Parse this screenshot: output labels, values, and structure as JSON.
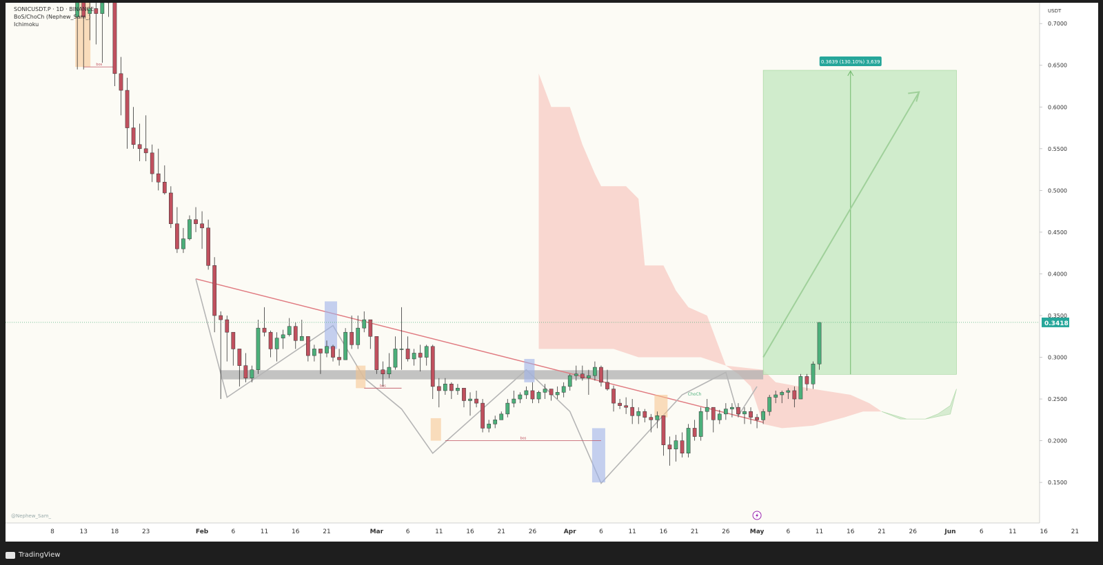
{
  "header": {
    "symbol_line": "SONICUSDT.P · 1D · BINANCE",
    "indicator_1": "BoS/ChoCh (Nephew_Sam_)",
    "indicator_2": "Ichimoku"
  },
  "watermark": "@Nephew_Sam_",
  "footer": {
    "brand": "TradingView"
  },
  "price_axis": {
    "currency": "USDT",
    "last_price_label": "0.3418",
    "last_price_color": "#26a69a"
  },
  "target_box": {
    "label": "0.3639 (130.10%) 3,639",
    "color": "#26a69a"
  },
  "annotations": {
    "bos": "bos",
    "choch": "ChoCh"
  },
  "colors": {
    "bull": "#4caf7a",
    "bear": "#c0505e",
    "cloud_bear": "#f5b9b0",
    "cloud_bull": "#cde8c8",
    "trendline": "#e07a80",
    "support_zone": "#b0b0b0",
    "target_fill": "#c8e9c4",
    "pattern_line": "#b5b5b5"
  },
  "chart_data": {
    "type": "candlestick",
    "title": "SONICUSDT.P 1D BINANCE",
    "ylabel": "USDT",
    "ylim": [
      0.1,
      0.73
    ],
    "y_ticks": [
      "0.7000",
      "0.6500",
      "0.6000",
      "0.5500",
      "0.5000",
      "0.4500",
      "0.4000",
      "0.3500",
      "0.3000",
      "0.2500",
      "0.2000",
      "0.1500"
    ],
    "x_tick_labels": [
      "8",
      "13",
      "18",
      "23",
      "Feb",
      "6",
      "11",
      "16",
      "21",
      "Mar",
      "6",
      "11",
      "16",
      "21",
      "26",
      "Apr",
      "6",
      "11",
      "16",
      "21",
      "26",
      "May",
      "6",
      "11",
      "16",
      "21",
      "26",
      "Jun",
      "6",
      "11",
      "16",
      "21"
    ],
    "x_tick_dates": [
      "2025-01-08",
      "2025-01-13",
      "2025-01-18",
      "2025-01-23",
      "2025-02-01",
      "2025-02-06",
      "2025-02-11",
      "2025-02-16",
      "2025-02-21",
      "2025-03-01",
      "2025-03-06",
      "2025-03-11",
      "2025-03-16",
      "2025-03-21",
      "2025-03-26",
      "2025-04-01",
      "2025-04-06",
      "2025-04-11",
      "2025-04-16",
      "2025-04-21",
      "2025-04-26",
      "2025-05-01",
      "2025-05-06",
      "2025-05-11",
      "2025-05-16",
      "2025-05-21",
      "2025-05-26",
      "2025-06-01",
      "2025-06-06",
      "2025-06-11",
      "2025-06-16",
      "2025-06-21"
    ],
    "last_price": 0.3418,
    "target_price": 0.644,
    "entry_price": 0.2795,
    "candles_start_date": "2025-01-12",
    "candles": [
      [
        0.708,
        0.728,
        0.645,
        0.728
      ],
      [
        0.728,
        0.735,
        0.645,
        0.708
      ],
      [
        0.712,
        0.73,
        0.68,
        0.718
      ],
      [
        0.718,
        0.735,
        0.675,
        0.712
      ],
      [
        0.712,
        0.74,
        0.653,
        0.725
      ],
      [
        0.725,
        0.74,
        0.708,
        0.735
      ],
      [
        0.73,
        0.74,
        0.625,
        0.64
      ],
      [
        0.64,
        0.66,
        0.59,
        0.62
      ],
      [
        0.62,
        0.635,
        0.55,
        0.575
      ],
      [
        0.575,
        0.6,
        0.55,
        0.555
      ],
      [
        0.555,
        0.58,
        0.535,
        0.55
      ],
      [
        0.55,
        0.59,
        0.535,
        0.545
      ],
      [
        0.545,
        0.555,
        0.51,
        0.52
      ],
      [
        0.52,
        0.55,
        0.5,
        0.51
      ],
      [
        0.51,
        0.53,
        0.495,
        0.497
      ],
      [
        0.497,
        0.505,
        0.455,
        0.46
      ],
      [
        0.46,
        0.48,
        0.425,
        0.43
      ],
      [
        0.43,
        0.455,
        0.425,
        0.442
      ],
      [
        0.442,
        0.47,
        0.44,
        0.465
      ],
      [
        0.465,
        0.48,
        0.45,
        0.46
      ],
      [
        0.46,
        0.475,
        0.43,
        0.455
      ],
      [
        0.455,
        0.465,
        0.405,
        0.41
      ],
      [
        0.41,
        0.42,
        0.33,
        0.35
      ],
      [
        0.35,
        0.355,
        0.25,
        0.345
      ],
      [
        0.345,
        0.35,
        0.295,
        0.33
      ],
      [
        0.33,
        0.33,
        0.29,
        0.31
      ],
      [
        0.31,
        0.31,
        0.265,
        0.29
      ],
      [
        0.29,
        0.305,
        0.27,
        0.275
      ],
      [
        0.275,
        0.29,
        0.27,
        0.285
      ],
      [
        0.285,
        0.345,
        0.28,
        0.335
      ],
      [
        0.335,
        0.36,
        0.325,
        0.33
      ],
      [
        0.33,
        0.332,
        0.3,
        0.31
      ],
      [
        0.31,
        0.33,
        0.295,
        0.323
      ],
      [
        0.323,
        0.333,
        0.31,
        0.327
      ],
      [
        0.327,
        0.347,
        0.325,
        0.337
      ],
      [
        0.337,
        0.342,
        0.31,
        0.32
      ],
      [
        0.32,
        0.345,
        0.32,
        0.325
      ],
      [
        0.325,
        0.325,
        0.295,
        0.302
      ],
      [
        0.302,
        0.315,
        0.295,
        0.31
      ],
      [
        0.31,
        0.31,
        0.28,
        0.305
      ],
      [
        0.305,
        0.32,
        0.3,
        0.313
      ],
      [
        0.313,
        0.315,
        0.295,
        0.3
      ],
      [
        0.3,
        0.31,
        0.29,
        0.297
      ],
      [
        0.297,
        0.335,
        0.297,
        0.33
      ],
      [
        0.33,
        0.35,
        0.31,
        0.315
      ],
      [
        0.315,
        0.35,
        0.31,
        0.335
      ],
      [
        0.335,
        0.355,
        0.33,
        0.345
      ],
      [
        0.345,
        0.345,
        0.31,
        0.325
      ],
      [
        0.325,
        0.325,
        0.28,
        0.285
      ],
      [
        0.285,
        0.295,
        0.265,
        0.28
      ],
      [
        0.28,
        0.305,
        0.275,
        0.288
      ],
      [
        0.288,
        0.325,
        0.285,
        0.31
      ],
      [
        0.31,
        0.36,
        0.285,
        0.31
      ],
      [
        0.31,
        0.325,
        0.295,
        0.298
      ],
      [
        0.298,
        0.31,
        0.29,
        0.305
      ],
      [
        0.305,
        0.315,
        0.283,
        0.3
      ],
      [
        0.3,
        0.315,
        0.29,
        0.313
      ],
      [
        0.313,
        0.315,
        0.25,
        0.265
      ],
      [
        0.265,
        0.275,
        0.24,
        0.26
      ],
      [
        0.26,
        0.275,
        0.255,
        0.268
      ],
      [
        0.268,
        0.27,
        0.25,
        0.26
      ],
      [
        0.26,
        0.268,
        0.255,
        0.263
      ],
      [
        0.263,
        0.263,
        0.24,
        0.248
      ],
      [
        0.248,
        0.258,
        0.23,
        0.25
      ],
      [
        0.25,
        0.26,
        0.24,
        0.245
      ],
      [
        0.245,
        0.25,
        0.21,
        0.215
      ],
      [
        0.215,
        0.225,
        0.21,
        0.22
      ],
      [
        0.22,
        0.23,
        0.215,
        0.225
      ],
      [
        0.225,
        0.235,
        0.225,
        0.232
      ],
      [
        0.232,
        0.25,
        0.228,
        0.245
      ],
      [
        0.245,
        0.26,
        0.24,
        0.25
      ],
      [
        0.25,
        0.258,
        0.245,
        0.255
      ],
      [
        0.255,
        0.265,
        0.25,
        0.26
      ],
      [
        0.26,
        0.27,
        0.245,
        0.25
      ],
      [
        0.25,
        0.26,
        0.245,
        0.258
      ],
      [
        0.258,
        0.268,
        0.25,
        0.262
      ],
      [
        0.262,
        0.262,
        0.248,
        0.255
      ],
      [
        0.255,
        0.265,
        0.25,
        0.258
      ],
      [
        0.258,
        0.27,
        0.252,
        0.265
      ],
      [
        0.265,
        0.28,
        0.26,
        0.278
      ],
      [
        0.278,
        0.29,
        0.272,
        0.28
      ],
      [
        0.28,
        0.29,
        0.272,
        0.275
      ],
      [
        0.275,
        0.285,
        0.255,
        0.278
      ],
      [
        0.278,
        0.295,
        0.272,
        0.288
      ],
      [
        0.288,
        0.29,
        0.265,
        0.27
      ],
      [
        0.27,
        0.285,
        0.26,
        0.262
      ],
      [
        0.262,
        0.266,
        0.235,
        0.245
      ],
      [
        0.245,
        0.25,
        0.238,
        0.242
      ],
      [
        0.242,
        0.252,
        0.232,
        0.24
      ],
      [
        0.24,
        0.25,
        0.22,
        0.23
      ],
      [
        0.23,
        0.24,
        0.22,
        0.235
      ],
      [
        0.235,
        0.238,
        0.222,
        0.228
      ],
      [
        0.228,
        0.232,
        0.21,
        0.225
      ],
      [
        0.225,
        0.235,
        0.215,
        0.23
      ],
      [
        0.23,
        0.23,
        0.182,
        0.195
      ],
      [
        0.195,
        0.205,
        0.17,
        0.19
      ],
      [
        0.19,
        0.207,
        0.175,
        0.2
      ],
      [
        0.2,
        0.21,
        0.18,
        0.185
      ],
      [
        0.185,
        0.22,
        0.18,
        0.215
      ],
      [
        0.215,
        0.225,
        0.2,
        0.205
      ],
      [
        0.205,
        0.24,
        0.2,
        0.235
      ],
      [
        0.235,
        0.25,
        0.225,
        0.24
      ],
      [
        0.24,
        0.24,
        0.21,
        0.225
      ],
      [
        0.225,
        0.237,
        0.22,
        0.232
      ],
      [
        0.232,
        0.245,
        0.225,
        0.238
      ],
      [
        0.238,
        0.245,
        0.228,
        0.24
      ],
      [
        0.24,
        0.245,
        0.228,
        0.232
      ],
      [
        0.232,
        0.24,
        0.22,
        0.235
      ],
      [
        0.235,
        0.24,
        0.22,
        0.228
      ],
      [
        0.228,
        0.232,
        0.215,
        0.225
      ],
      [
        0.225,
        0.238,
        0.22,
        0.235
      ],
      [
        0.235,
        0.255,
        0.23,
        0.252
      ],
      [
        0.252,
        0.26,
        0.245,
        0.255
      ],
      [
        0.255,
        0.26,
        0.245,
        0.258
      ],
      [
        0.258,
        0.263,
        0.25,
        0.26
      ],
      [
        0.26,
        0.265,
        0.24,
        0.25
      ],
      [
        0.25,
        0.28,
        0.25,
        0.277
      ],
      [
        0.277,
        0.28,
        0.26,
        0.268
      ],
      [
        0.268,
        0.295,
        0.262,
        0.292
      ],
      [
        0.292,
        0.3418,
        0.285,
        0.3418
      ]
    ],
    "kijun_cloud_note": "Ichimoku cloud (bearish then bullish)",
    "support_zone": [
      0.2735,
      0.2845
    ],
    "trendline": {
      "from": [
        "2025-01-31",
        0.394
      ],
      "to": [
        "2025-05-02",
        0.222
      ]
    }
  }
}
